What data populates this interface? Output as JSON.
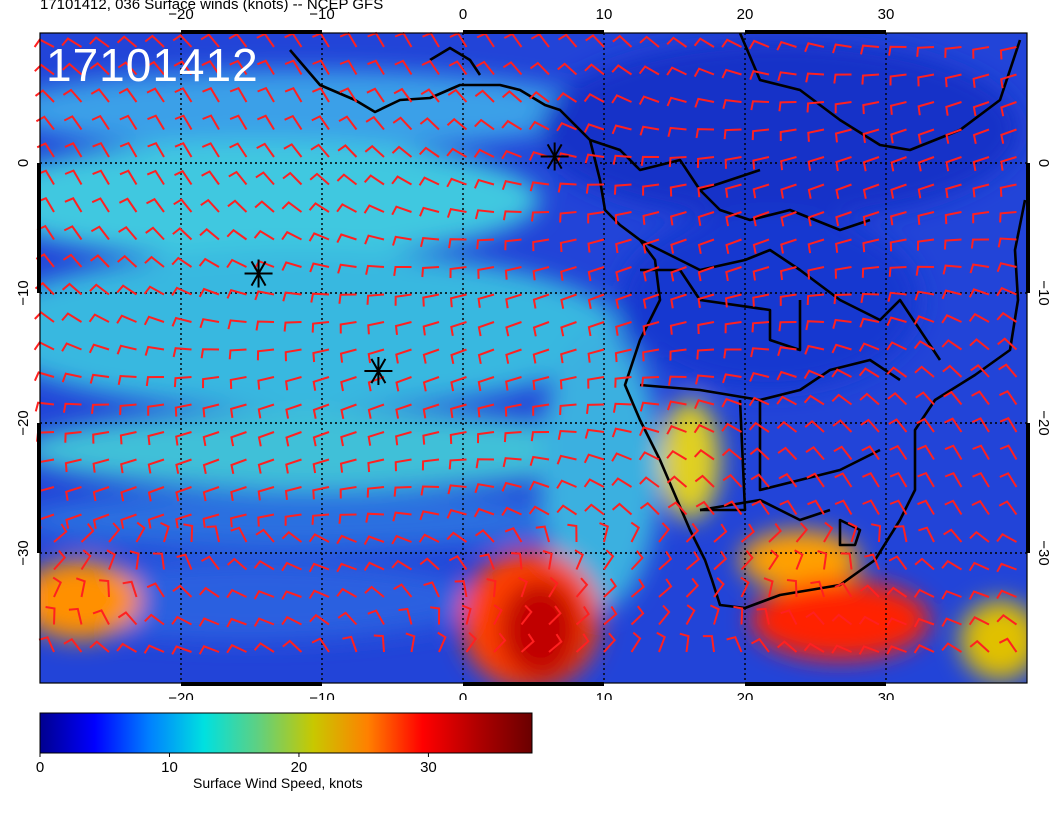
{
  "header": {
    "title": "17101412, 036 Surface winds (knots) -- NCEP GFS"
  },
  "run_label": "17101412",
  "map": {
    "projection": "lat-lon",
    "lon_range": [
      -30,
      40
    ],
    "lat_range": [
      -40,
      10
    ],
    "lon_ticks": [
      -20,
      -10,
      0,
      10,
      20,
      30
    ],
    "lat_ticks": [
      0,
      -10,
      -20,
      -30
    ],
    "lon_tick_labels": [
      "−20",
      "−10",
      "0",
      "10",
      "20",
      "30"
    ],
    "lat_tick_labels": [
      "0",
      "−10",
      "−20",
      "−30"
    ],
    "barb_color": "#ff2020",
    "markers": [
      {
        "lon": 6.5,
        "lat": 0.5
      },
      {
        "lon": -14.5,
        "lat": -8.5
      },
      {
        "lon": -6,
        "lat": -16
      }
    ]
  },
  "colorbar": {
    "title": "Surface Wind Speed, knots",
    "range": [
      0,
      38
    ],
    "tick_values": [
      0,
      10,
      20,
      30
    ],
    "tick_labels": [
      "0",
      "10",
      "20",
      "30"
    ],
    "colors": [
      "#00008f",
      "#0000ff",
      "#0080ff",
      "#00e0e0",
      "#60d080",
      "#c8c800",
      "#ff8000",
      "#ff0000",
      "#b00000",
      "#6a0000"
    ]
  }
}
